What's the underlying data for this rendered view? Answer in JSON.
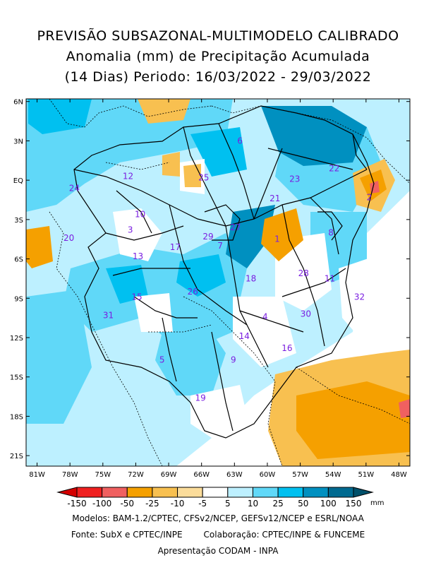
{
  "title": {
    "line1": "PREVISÃO SUBSAZONAL-MULTIMODELO CALIBRADO",
    "line2": "Anomalia (mm) de Precipitação Acumulada",
    "line3": "(14 Dias) Periodo: 16/03/2022 - 29/03/2022"
  },
  "map": {
    "lon_labels": [
      "81W",
      "78W",
      "75W",
      "72W",
      "69W",
      "66W",
      "63W",
      "60W",
      "57W",
      "54W",
      "51W",
      "48W"
    ],
    "lat_labels": [
      "6N",
      "3N",
      "EQ",
      "3S",
      "6S",
      "9S",
      "12S",
      "15S",
      "18S",
      "21S"
    ],
    "basins": [
      {
        "id": "1",
        "lon": -59.1,
        "lat": -4.5
      },
      {
        "id": "2",
        "lon": -50.7,
        "lat": -1.3
      },
      {
        "id": "3",
        "lon": -72.5,
        "lat": -3.8
      },
      {
        "id": "4",
        "lon": -60.2,
        "lat": -10.4
      },
      {
        "id": "5",
        "lon": -69.6,
        "lat": -13.7
      },
      {
        "id": "6",
        "lon": -62.5,
        "lat": 3.0
      },
      {
        "id": "7",
        "lon": -64.3,
        "lat": -5.0
      },
      {
        "id": "8",
        "lon": -54.2,
        "lat": -4.0
      },
      {
        "id": "9",
        "lon": -63.1,
        "lat": -13.7
      },
      {
        "id": "10",
        "lon": -71.6,
        "lat": -2.6
      },
      {
        "id": "11",
        "lon": -54.3,
        "lat": -7.5
      },
      {
        "id": "12",
        "lon": -72.7,
        "lat": 0.3
      },
      {
        "id": "13",
        "lon": -71.8,
        "lat": -5.8
      },
      {
        "id": "14",
        "lon": -62.1,
        "lat": -11.9
      },
      {
        "id": "15",
        "lon": -71.9,
        "lat": -8.9
      },
      {
        "id": "16",
        "lon": -58.2,
        "lat": -12.8
      },
      {
        "id": "17",
        "lon": -68.4,
        "lat": -5.1
      },
      {
        "id": "18",
        "lon": -61.5,
        "lat": -7.5
      },
      {
        "id": "19",
        "lon": -66.1,
        "lat": -16.6
      },
      {
        "id": "20",
        "lon": -78.1,
        "lat": -4.4
      },
      {
        "id": "21",
        "lon": -59.3,
        "lat": -1.4
      },
      {
        "id": "22",
        "lon": -53.9,
        "lat": 0.9
      },
      {
        "id": "23",
        "lon": -57.5,
        "lat": 0.1
      },
      {
        "id": "24",
        "lon": -77.6,
        "lat": -0.6
      },
      {
        "id": "25",
        "lon": -65.8,
        "lat": 0.2
      },
      {
        "id": "26",
        "lon": -66.8,
        "lat": -8.5
      },
      {
        "id": "27",
        "lon": -62.9,
        "lat": -3.6
      },
      {
        "id": "28",
        "lon": -56.7,
        "lat": -7.1
      },
      {
        "id": "29",
        "lon": -65.4,
        "lat": -4.3
      },
      {
        "id": "30",
        "lon": -56.5,
        "lat": -10.2
      },
      {
        "id": "31",
        "lon": -74.5,
        "lat": -10.3
      },
      {
        "id": "32",
        "lon": -51.6,
        "lat": -8.9
      }
    ]
  },
  "colorbar": {
    "labels": [
      "-150",
      "-100",
      "-50",
      "-25",
      "-10",
      "-5",
      "5",
      "10",
      "25",
      "50",
      "100",
      "150"
    ],
    "colors": [
      "#d40000",
      "#f02020",
      "#f06060",
      "#f5a000",
      "#f8c050",
      "#fbdc9a",
      "#ffffff",
      "#bdf0ff",
      "#60d8f8",
      "#00c0f0",
      "#0090c0",
      "#006a90",
      "#00506a"
    ],
    "unit": "mm"
  },
  "credits": {
    "models": "Modelos: BAM-1.2/CPTEC, CFSv2/NCEP, GEFSv12/NCEP e ESRL/NOAA",
    "source": "Fonte: SubX e CPTEC/INPE",
    "collab": "Colaboração: CPTEC/INPE & FUNCEME",
    "presentation": "Apresentação CODAM - INPA"
  }
}
